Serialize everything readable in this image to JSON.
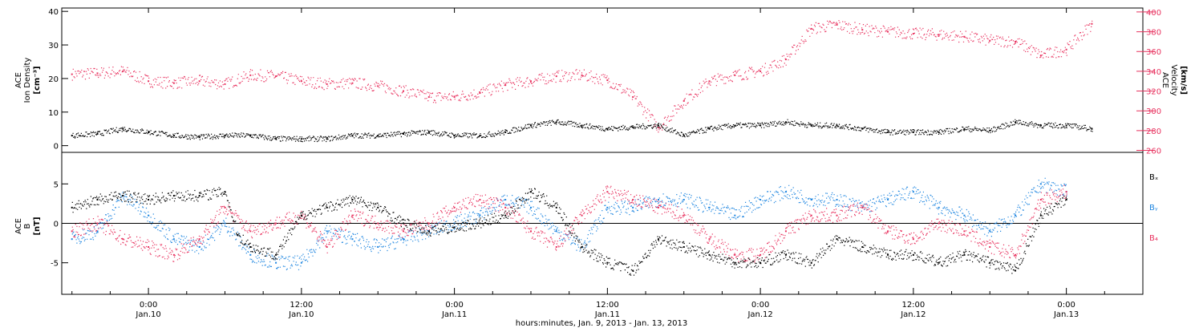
{
  "colors": {
    "density": "#000000",
    "velocity": "#e8325f",
    "bx": "#000000",
    "by": "#1f86e0",
    "bz": "#e8325f",
    "axis": "#000000"
  },
  "chart_data": [
    {
      "type": "scatter",
      "panel": "top",
      "left_ylabel": [
        "ACE",
        "Ion Density",
        "[cm⁻³]"
      ],
      "right_ylabel": [
        "ACE",
        "Velocity",
        "[km/s]"
      ],
      "left_ylim": [
        -2,
        41
      ],
      "left_yticks": [
        0,
        10,
        20,
        30,
        40
      ],
      "right_ylim": [
        258,
        404
      ],
      "right_yticks": [
        260,
        280,
        300,
        320,
        340,
        360,
        380,
        400
      ],
      "grid": false,
      "series": [
        {
          "key": "density",
          "axis": "left",
          "points": [
            [
              -6,
              3
            ],
            [
              -4,
              3.5
            ],
            [
              -2,
              5
            ],
            [
              0,
              4
            ],
            [
              2,
              3
            ],
            [
              4,
              2.5
            ],
            [
              6,
              3
            ],
            [
              8,
              3
            ],
            [
              10,
              2
            ],
            [
              12,
              2
            ],
            [
              14,
              2
            ],
            [
              16,
              3
            ],
            [
              18,
              3
            ],
            [
              20,
              3.5
            ],
            [
              22,
              4
            ],
            [
              24,
              3
            ],
            [
              26,
              3
            ],
            [
              28,
              4
            ],
            [
              30,
              6
            ],
            [
              32,
              7
            ],
            [
              34,
              6
            ],
            [
              36,
              5
            ],
            [
              38,
              5.5
            ],
            [
              40,
              6
            ],
            [
              42,
              3
            ],
            [
              44,
              5
            ],
            [
              46,
              6
            ],
            [
              48,
              6
            ],
            [
              50,
              7
            ],
            [
              52,
              6
            ],
            [
              54,
              6
            ],
            [
              56,
              5
            ],
            [
              58,
              4
            ],
            [
              60,
              4
            ],
            [
              62,
              4
            ],
            [
              64,
              5
            ],
            [
              66,
              4.5
            ],
            [
              68,
              7
            ],
            [
              70,
              6
            ],
            [
              72,
              6
            ],
            [
              74,
              5
            ]
          ]
        },
        {
          "key": "velocity",
          "axis": "right",
          "points": [
            [
              -6,
              337
            ],
            [
              -4,
              338
            ],
            [
              -2,
              340
            ],
            [
              0,
              330
            ],
            [
              2,
              328
            ],
            [
              4,
              330
            ],
            [
              6,
              327
            ],
            [
              8,
              336
            ],
            [
              10,
              335
            ],
            [
              12,
              330
            ],
            [
              14,
              327
            ],
            [
              16,
              328
            ],
            [
              18,
              325
            ],
            [
              20,
              320
            ],
            [
              22,
              314
            ],
            [
              24,
              314
            ],
            [
              26,
              318
            ],
            [
              28,
              326
            ],
            [
              30,
              330
            ],
            [
              32,
              335
            ],
            [
              34,
              336
            ],
            [
              36,
              331
            ],
            [
              38,
              314
            ],
            [
              40,
              283
            ],
            [
              42,
              310
            ],
            [
              44,
              330
            ],
            [
              46,
              336
            ],
            [
              48,
              340
            ],
            [
              50,
              352
            ],
            [
              52,
              383
            ],
            [
              54,
              387
            ],
            [
              56,
              382
            ],
            [
              58,
              380
            ],
            [
              60,
              378
            ],
            [
              62,
              377
            ],
            [
              64,
              375
            ],
            [
              66,
              371
            ],
            [
              68,
              370
            ],
            [
              70,
              356
            ],
            [
              72,
              362
            ],
            [
              74,
              388
            ]
          ]
        }
      ]
    },
    {
      "type": "scatter",
      "panel": "bottom",
      "ylabel": [
        "ACE",
        "B",
        "[nT]"
      ],
      "ylim": [
        -9,
        9
      ],
      "yticks": [
        -5,
        0,
        5
      ],
      "zero_line": true,
      "grid": false,
      "legend": {
        "position": "right",
        "entries": [
          "Bₓ",
          "Bᵧ",
          "B₄"
        ]
      },
      "xlabel": "hours:minutes, Jan.  9, 2013 - Jan. 13, 2013",
      "xlim": [
        -6.8,
        78
      ],
      "xticks": [
        {
          "x": 0,
          "top": "0:00",
          "bottom": "Jan.10"
        },
        {
          "x": 12,
          "top": "12:00",
          "bottom": "Jan.10"
        },
        {
          "x": 24,
          "top": "0:00",
          "bottom": "Jan.11"
        },
        {
          "x": 36,
          "top": "12:00",
          "bottom": "Jan.11"
        },
        {
          "x": 48,
          "top": "0:00",
          "bottom": "Jan.12"
        },
        {
          "x": 60,
          "top": "12:00",
          "bottom": "Jan.12"
        },
        {
          "x": 72,
          "top": "0:00",
          "bottom": "Jan.13"
        }
      ],
      "series": [
        {
          "key": "bx",
          "points": [
            [
              -6,
              2
            ],
            [
              -4,
              3
            ],
            [
              -2,
              3.5
            ],
            [
              0,
              3
            ],
            [
              2,
              3.5
            ],
            [
              4,
              3.5
            ],
            [
              6,
              4
            ],
            [
              7,
              -1.5
            ],
            [
              8,
              -3
            ],
            [
              10,
              -4
            ],
            [
              12,
              1
            ],
            [
              14,
              2
            ],
            [
              16,
              3
            ],
            [
              18,
              2
            ],
            [
              20,
              0
            ],
            [
              22,
              -1
            ],
            [
              24,
              -0.5
            ],
            [
              26,
              0
            ],
            [
              28,
              1
            ],
            [
              30,
              4
            ],
            [
              32,
              2
            ],
            [
              34,
              -3
            ],
            [
              36,
              -5
            ],
            [
              38,
              -6
            ],
            [
              40,
              -2
            ],
            [
              42,
              -3
            ],
            [
              44,
              -4
            ],
            [
              46,
              -5
            ],
            [
              48,
              -5
            ],
            [
              50,
              -4
            ],
            [
              52,
              -5
            ],
            [
              54,
              -2
            ],
            [
              56,
              -3
            ],
            [
              58,
              -4
            ],
            [
              60,
              -4
            ],
            [
              62,
              -5
            ],
            [
              64,
              -4
            ],
            [
              66,
              -5
            ],
            [
              68,
              -6
            ],
            [
              70,
              1
            ],
            [
              72,
              3
            ]
          ]
        },
        {
          "key": "by",
          "points": [
            [
              -6,
              -2
            ],
            [
              -4,
              -1
            ],
            [
              -2,
              3.5
            ],
            [
              0,
              1
            ],
            [
              2,
              -2
            ],
            [
              4,
              -3
            ],
            [
              6,
              0
            ],
            [
              8,
              -4
            ],
            [
              10,
              -5
            ],
            [
              12,
              -5
            ],
            [
              14,
              -1
            ],
            [
              16,
              -2
            ],
            [
              18,
              -3
            ],
            [
              20,
              -2
            ],
            [
              22,
              -1
            ],
            [
              24,
              0
            ],
            [
              26,
              1
            ],
            [
              28,
              3
            ],
            [
              30,
              2
            ],
            [
              32,
              -1
            ],
            [
              34,
              -3
            ],
            [
              36,
              2
            ],
            [
              38,
              2
            ],
            [
              40,
              3
            ],
            [
              42,
              3
            ],
            [
              44,
              2
            ],
            [
              46,
              1
            ],
            [
              48,
              3
            ],
            [
              50,
              4
            ],
            [
              52,
              3
            ],
            [
              54,
              3
            ],
            [
              56,
              2
            ],
            [
              58,
              3
            ],
            [
              60,
              4
            ],
            [
              62,
              2
            ],
            [
              64,
              1
            ],
            [
              66,
              -1
            ],
            [
              68,
              1
            ],
            [
              70,
              5
            ],
            [
              72,
              4
            ]
          ]
        },
        {
          "key": "bz",
          "points": [
            [
              -6,
              -1
            ],
            [
              -4,
              0
            ],
            [
              -2,
              -2
            ],
            [
              0,
              -3
            ],
            [
              2,
              -4
            ],
            [
              4,
              -2
            ],
            [
              6,
              2
            ],
            [
              8,
              -1
            ],
            [
              10,
              0
            ],
            [
              12,
              1
            ],
            [
              14,
              -3
            ],
            [
              16,
              1
            ],
            [
              18,
              0
            ],
            [
              20,
              -1
            ],
            [
              22,
              0
            ],
            [
              24,
              2
            ],
            [
              26,
              3
            ],
            [
              28,
              2
            ],
            [
              30,
              -1
            ],
            [
              32,
              -3
            ],
            [
              34,
              1
            ],
            [
              36,
              4
            ],
            [
              38,
              3
            ],
            [
              40,
              2
            ],
            [
              42,
              1
            ],
            [
              44,
              -2
            ],
            [
              46,
              -4
            ],
            [
              48,
              -4
            ],
            [
              50,
              -1
            ],
            [
              52,
              1
            ],
            [
              54,
              1
            ],
            [
              56,
              2
            ],
            [
              58,
              -1
            ],
            [
              60,
              -2
            ],
            [
              62,
              0
            ],
            [
              64,
              -1
            ],
            [
              66,
              -3
            ],
            [
              68,
              -4
            ],
            [
              70,
              3
            ],
            [
              72,
              4
            ]
          ]
        }
      ]
    }
  ]
}
